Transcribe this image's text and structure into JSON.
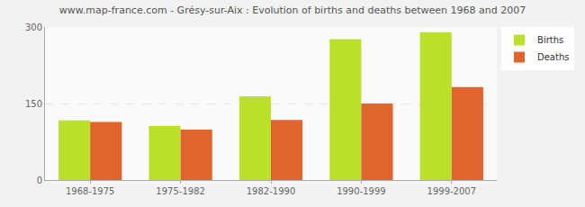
{
  "chart_data": {
    "type": "bar",
    "title": "www.map-france.com - Grésy-sur-Aix : Evolution of births and deaths between 1968 and 2007",
    "categories": [
      "1968-1975",
      "1975-1982",
      "1982-1990",
      "1990-1999",
      "1999-2007"
    ],
    "series": [
      {
        "name": "Births",
        "color": "#bbe02c",
        "values": [
          117,
          106,
          164,
          276,
          290
        ]
      },
      {
        "name": "Deaths",
        "color": "#e0642e",
        "values": [
          114,
          99,
          118,
          150,
          182
        ]
      }
    ],
    "ylim": [
      0,
      300
    ],
    "yticks": [
      0,
      150,
      300
    ],
    "grid": true,
    "legend": "right"
  }
}
